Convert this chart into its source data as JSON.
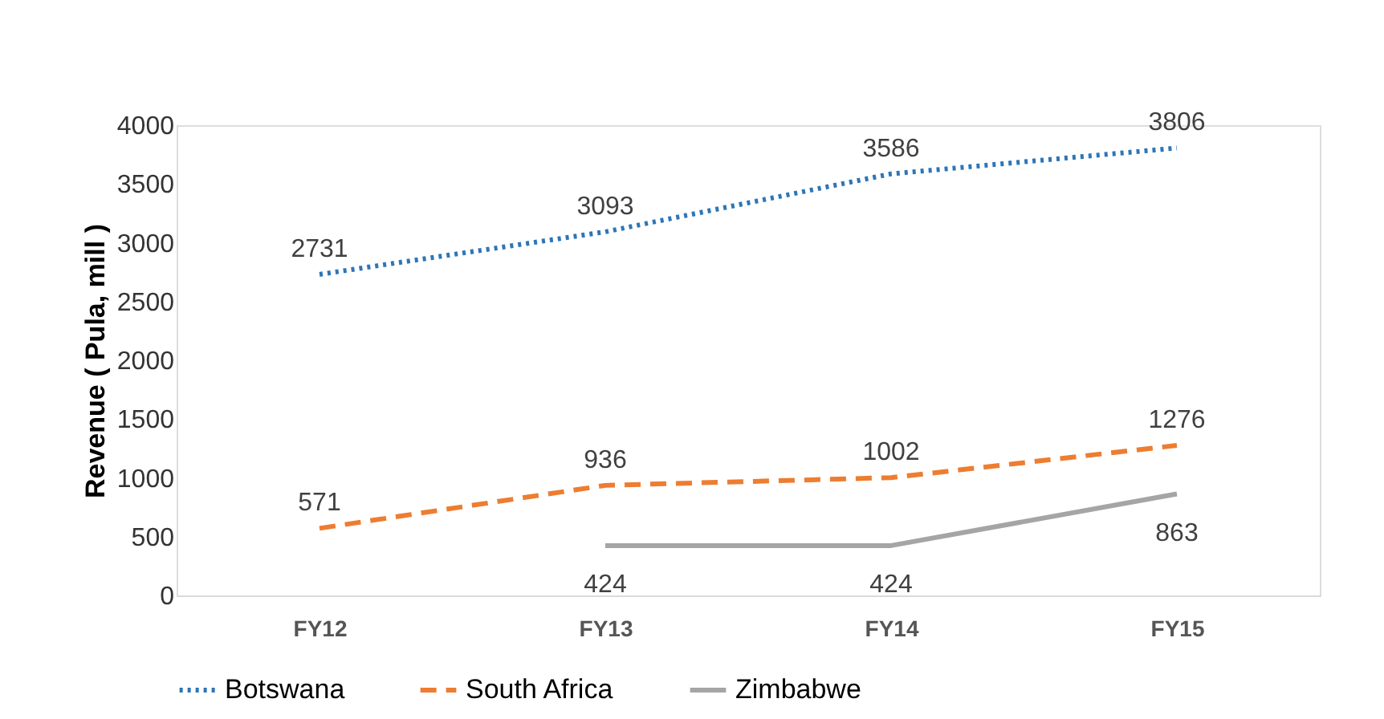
{
  "chart_data": {
    "type": "line",
    "ylabel": "Revenue ( Pula, mill )",
    "categories": [
      "FY12",
      "FY13",
      "FY14",
      "FY15"
    ],
    "series": [
      {
        "name": "Botswana",
        "color": "#2e75b6",
        "line_style": "dotted",
        "values": [
          2731,
          3093,
          3586,
          3806
        ]
      },
      {
        "name": "South Africa",
        "color": "#ed7d31",
        "line_style": "dashed",
        "values": [
          571,
          936,
          1002,
          1276
        ]
      },
      {
        "name": "Zimbabwe",
        "color": "#a5a5a5",
        "line_style": "solid",
        "values": [
          null,
          424,
          424,
          863
        ]
      }
    ],
    "ylim": [
      0,
      4000
    ],
    "yticks": [
      0,
      500,
      1000,
      1500,
      2000,
      2500,
      3000,
      3500,
      4000
    ],
    "grid": false,
    "legend": "bottom",
    "data_labels": true,
    "marker": "none"
  }
}
